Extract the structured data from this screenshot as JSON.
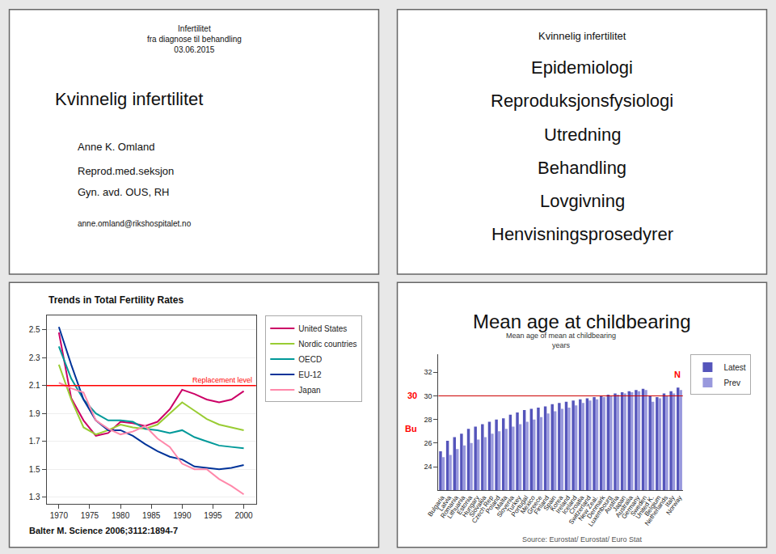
{
  "chart_data": [
    {
      "type": "text",
      "title": "Kvinnelig infertilitet",
      "subtitle": "Infertilitet\nfra diagnose til behandling\n03.06.2015",
      "annotations": [
        {
          "text": "Anne K. Omland"
        },
        {
          "text": "Reprod.med.seksjon"
        },
        {
          "text": "Gyn. avd. OUS, RH"
        },
        {
          "text": "anne.omland@rikshospitalet.no"
        }
      ]
    },
    {
      "type": "text",
      "title": "Kvinnelig infertilitet",
      "annotations": [
        {
          "text": "Epidemiologi"
        },
        {
          "text": "Reproduksjonsfysiologi"
        },
        {
          "text": "Utredning"
        },
        {
          "text": "Behandling"
        },
        {
          "text": "Lovgivning"
        },
        {
          "text": "Henvisningsprosedyrer"
        }
      ]
    },
    {
      "type": "line",
      "title": "Trends in Total Fertility Rates",
      "caption": "Balter M. Science 2006;3112:1894-7",
      "x": [
        1970,
        1972,
        1974,
        1976,
        1978,
        1980,
        1982,
        1984,
        1986,
        1988,
        1990,
        1992,
        1994,
        1996,
        1998,
        2000
      ],
      "series": [
        {
          "name": "United States",
          "color": "#cc0066",
          "values": [
            2.48,
            2.01,
            1.85,
            1.74,
            1.76,
            1.84,
            1.83,
            1.81,
            1.84,
            1.93,
            2.07,
            2.04,
            2.0,
            1.98,
            2.0,
            2.06
          ]
        },
        {
          "name": "Nordic countries",
          "color": "#99cc33",
          "values": [
            2.25,
            2.0,
            1.8,
            1.75,
            1.78,
            1.82,
            1.8,
            1.79,
            1.82,
            1.9,
            1.98,
            1.92,
            1.86,
            1.82,
            1.8,
            1.78
          ]
        },
        {
          "name": "OECD",
          "color": "#009999",
          "values": [
            2.38,
            2.15,
            2.0,
            1.9,
            1.85,
            1.85,
            1.84,
            1.79,
            1.78,
            1.76,
            1.78,
            1.73,
            1.7,
            1.67,
            1.66,
            1.65
          ]
        },
        {
          "name": "EU-12",
          "color": "#003399",
          "values": [
            2.52,
            2.25,
            2.0,
            1.85,
            1.78,
            1.78,
            1.74,
            1.68,
            1.63,
            1.59,
            1.57,
            1.52,
            1.51,
            1.5,
            1.51,
            1.53
          ]
        },
        {
          "name": "Japan",
          "color": "#ff88aa",
          "values": [
            2.12,
            2.08,
            2.05,
            1.85,
            1.79,
            1.75,
            1.77,
            1.81,
            1.72,
            1.66,
            1.54,
            1.5,
            1.5,
            1.43,
            1.38,
            1.32
          ]
        }
      ],
      "xlim": [
        1968,
        2002
      ],
      "xticks": [
        1970,
        1975,
        1980,
        1985,
        1990,
        1995,
        2000
      ],
      "ylim": [
        1.25,
        2.6
      ],
      "yticks": [
        1.3,
        1.5,
        1.7,
        1.9,
        2.1,
        2.3,
        2.5
      ],
      "grid": "y",
      "legend": "right",
      "ref_lines": [
        {
          "y": 2.1,
          "color": "red",
          "label": "Replacement level"
        }
      ]
    },
    {
      "type": "bar",
      "title": "Mean age at childbearing",
      "subtitle": "Mean age of mean at childbearing\nyears",
      "caption": "Source: Eurostat/ Eurostat/ Euro Stat",
      "categories": [
        "Bulgaria",
        "Latvia",
        "Romania",
        "Lithuania",
        "Estonia",
        "Hungary",
        "Slovakia",
        "Czech Rep",
        "Poland",
        "Malta",
        "Slovenia",
        "Turkey",
        "Portugal",
        "Mexico",
        "Greece",
        "Finland",
        "Spain",
        "Korea",
        "Ireland",
        "Iceland",
        "Croatia",
        "Switzerland",
        "New Zeal.",
        "Denmark",
        "Luxembourg",
        "Austria",
        "Japan",
        "Australia",
        "Germany",
        "Sweden",
        "United K.",
        "Belgium",
        "Netherlands",
        "Italy",
        "Norway"
      ],
      "series": [
        {
          "name": "Latest",
          "color": "#5555bb",
          "values": [
            25.3,
            26.2,
            26.5,
            26.8,
            27.2,
            27.4,
            27.6,
            27.8,
            28.0,
            28.1,
            28.4,
            28.6,
            28.8,
            28.9,
            29.0,
            29.1,
            29.3,
            29.4,
            29.5,
            29.6,
            29.7,
            29.8,
            29.9,
            30.0,
            30.1,
            30.2,
            30.3,
            30.4,
            30.5,
            30.6,
            30.0,
            29.9,
            30.2,
            30.4,
            30.7
          ]
        },
        {
          "name": "Prev",
          "color": "#9999dd",
          "values": [
            24.8,
            25.0,
            25.5,
            25.8,
            26.0,
            26.3,
            26.5,
            26.8,
            27.0,
            27.2,
            27.4,
            27.6,
            27.8,
            28.0,
            28.2,
            28.5,
            28.7,
            28.9,
            29.0,
            29.2,
            29.4,
            29.6,
            29.7,
            29.9,
            30.0,
            30.1,
            30.2,
            30.3,
            30.4,
            30.5,
            29.5,
            29.8,
            30.0,
            30.2,
            30.5
          ]
        }
      ],
      "ylim": [
        22,
        33.5
      ],
      "yticks": [
        24,
        26,
        28,
        30,
        32
      ],
      "grid": false,
      "legend": "right",
      "ref_lines": [
        {
          "y": 30,
          "color": "#cc0000"
        }
      ],
      "annotations": [
        {
          "text": "30",
          "y": 30,
          "color": "red"
        },
        {
          "text": "Bu",
          "y": 27.2,
          "color": "red"
        },
        {
          "text": "N",
          "x": "Italy",
          "y": 31.8,
          "color": "red"
        }
      ]
    }
  ]
}
